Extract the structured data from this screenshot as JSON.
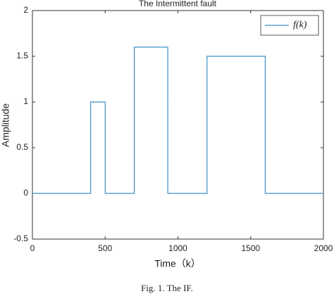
{
  "chart_data": {
    "type": "line",
    "title": "The Intermittent fault",
    "x": [
      0,
      400,
      400,
      500,
      500,
      700,
      700,
      930,
      930,
      1200,
      1200,
      1600,
      1600,
      2000
    ],
    "series": [
      {
        "name": "f(k)",
        "color": "#3d8fc6",
        "values": [
          0,
          0,
          1,
          1,
          0,
          0,
          1.6,
          1.6,
          0,
          0,
          1.5,
          1.5,
          0,
          0
        ]
      }
    ],
    "xlim": [
      0,
      2000
    ],
    "xticks": [
      0,
      500,
      1000,
      1500,
      2000
    ],
    "ylim": [
      -0.5,
      2
    ],
    "yticks": [
      -0.5,
      0,
      0.5,
      1,
      1.5,
      2
    ],
    "xlabel": "Time（k）",
    "ylabel": "Amplitude",
    "legend": "upper right",
    "caption": "Fig. 1.    The IF."
  }
}
